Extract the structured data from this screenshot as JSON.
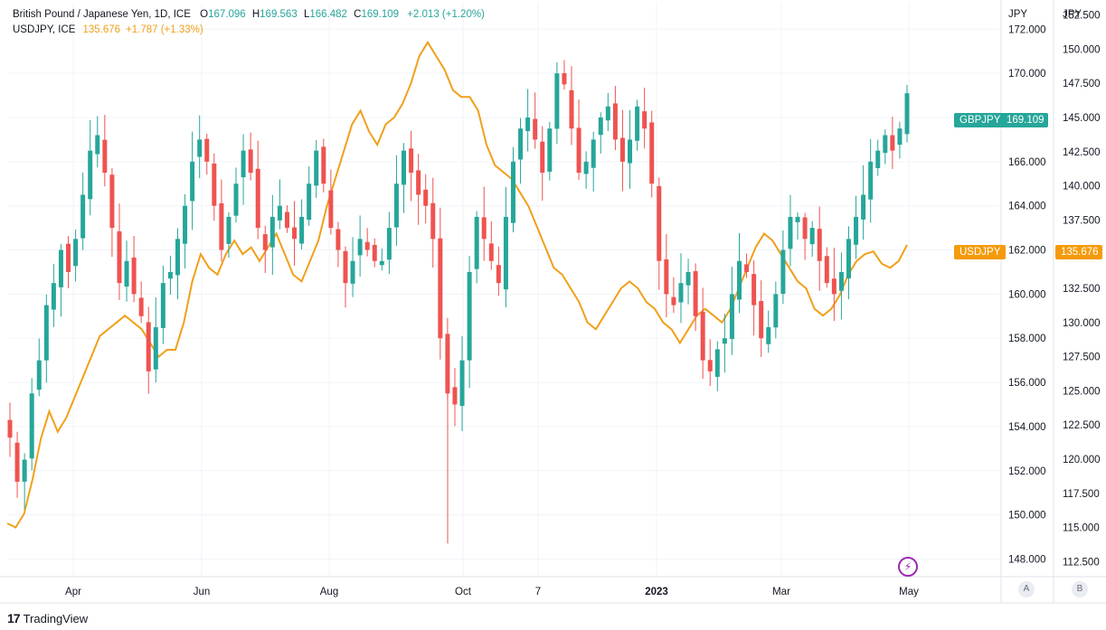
{
  "legend": {
    "symbol_title": "British Pound / Japanese Yen, 1D, ICE",
    "o_label": "O",
    "o_value": "167.096",
    "h_label": "H",
    "h_value": "169.563",
    "l_label": "L",
    "l_value": "166.482",
    "c_label": "C",
    "c_value": "169.109",
    "change": "+2.013 (+1.20%)",
    "compare_symbol": "USDJPY, ICE",
    "compare_value": "135.676",
    "compare_change": "+1.787 (+1.33%)"
  },
  "scales": {
    "left_unit": "JPY",
    "right_unit": "JPY",
    "left_scale_button": "A",
    "right_scale_button": "B"
  },
  "tags": {
    "gbpjpy_name": "GBPJPY",
    "gbpjpy_price": "169.109",
    "usdjpy_name": "USDJPY",
    "usdjpy_price": "135.676"
  },
  "footer": {
    "brand": "TradingView",
    "logo_text": "17"
  },
  "colors": {
    "up": "#26a69a",
    "down": "#ef5350",
    "compare": "#f0a01a",
    "grid": "#f0f3fa"
  },
  "chart_data": {
    "type": "candlestick+line",
    "x_ticks": [
      "Apr",
      "Jun",
      "Aug",
      "Oct",
      "7",
      "2023",
      "Mar",
      "May"
    ],
    "left_axis": {
      "unit": "JPY",
      "ticks": [
        148,
        150,
        152,
        154,
        156,
        158,
        160,
        162,
        164,
        166,
        168,
        170,
        172
      ],
      "range": [
        147.2,
        173.2
      ]
    },
    "right_axis": {
      "unit": "JPY",
      "ticks": [
        112.5,
        115,
        117.5,
        120,
        122.5,
        125,
        127.5,
        130,
        132.5,
        135,
        137.5,
        140,
        142.5,
        145,
        147.5,
        150,
        152.5
      ],
      "range": [
        111.4,
        153.4
      ]
    },
    "series": [
      {
        "name": "GBPJPY",
        "kind": "candles",
        "last": 169.109,
        "close_path": [
          153.5,
          151.5,
          152.5,
          155.5,
          157,
          159.5,
          160.5,
          162,
          161,
          162.5,
          164.5,
          166.5,
          167.2,
          165.5,
          163,
          160.5,
          161.5,
          160,
          159,
          156.5,
          158.5,
          160.5,
          161,
          162.5,
          164,
          166,
          167,
          166,
          164,
          162,
          163.5,
          165,
          166.5,
          165.5,
          163,
          162,
          163.5,
          164,
          163,
          162.5,
          163.5,
          165,
          166.5,
          165,
          163,
          162,
          160.5,
          161.5,
          162.5,
          162,
          161.5,
          161.5,
          163,
          165,
          166.5,
          165.5,
          164.5,
          164,
          162.5,
          158,
          155.5,
          155,
          157,
          161,
          163.5,
          162.5,
          161.5,
          160.5,
          163.5,
          166,
          167.5,
          168,
          167,
          165.5,
          167.5,
          170,
          169.5,
          167.5,
          165.5,
          166,
          167,
          168,
          168.5,
          167,
          166,
          167,
          168.5,
          167.5,
          165,
          161.5,
          160,
          159.5,
          160.5,
          161,
          159,
          157,
          156.5,
          157.5,
          158,
          160,
          161.5,
          161,
          159.5,
          158,
          158.5,
          160,
          162,
          163.5,
          163.5,
          162.5,
          163,
          161.5,
          160.5,
          160,
          161,
          162.5,
          163.5,
          164.5,
          166,
          166.5,
          167.2,
          166.5,
          167.5,
          169.1
        ],
        "note": "Daily OHLC candles; close path approximated from chart, high/low wicks estimated"
      },
      {
        "name": "USDJPY",
        "kind": "line",
        "last": 135.676,
        "values": [
          115.3,
          115,
          116,
          118.5,
          121.5,
          123.5,
          122,
          123,
          124.5,
          126,
          127.5,
          129,
          129.5,
          130,
          130.5,
          130,
          129.5,
          128.5,
          127.5,
          128,
          128,
          130,
          133,
          135,
          134,
          133.5,
          135,
          136,
          135,
          135.5,
          134.5,
          135.5,
          136.5,
          135,
          133.5,
          133,
          134.5,
          136,
          138.5,
          140.5,
          142.5,
          144.5,
          145.5,
          144,
          143,
          144.5,
          145,
          146,
          147.5,
          149.5,
          150.5,
          149.5,
          148.5,
          147,
          146.5,
          146.5,
          145.5,
          143,
          141.5,
          141,
          140.5,
          139.5,
          138.5,
          137,
          135.5,
          134,
          133.5,
          132.5,
          131.5,
          130,
          129.5,
          130.5,
          131.5,
          132.5,
          133,
          132.5,
          131.5,
          131,
          130,
          129.5,
          128.5,
          129.5,
          130.5,
          131,
          130.5,
          130,
          131,
          132.5,
          134,
          135.5,
          136.5,
          136,
          135,
          134,
          133,
          132.5,
          131,
          130.5,
          131,
          132,
          133.5,
          134.5,
          135,
          135.2,
          134.3,
          134,
          134.5,
          135.676
        ],
        "note": "Compare line on right scale; values approximated"
      }
    ]
  }
}
